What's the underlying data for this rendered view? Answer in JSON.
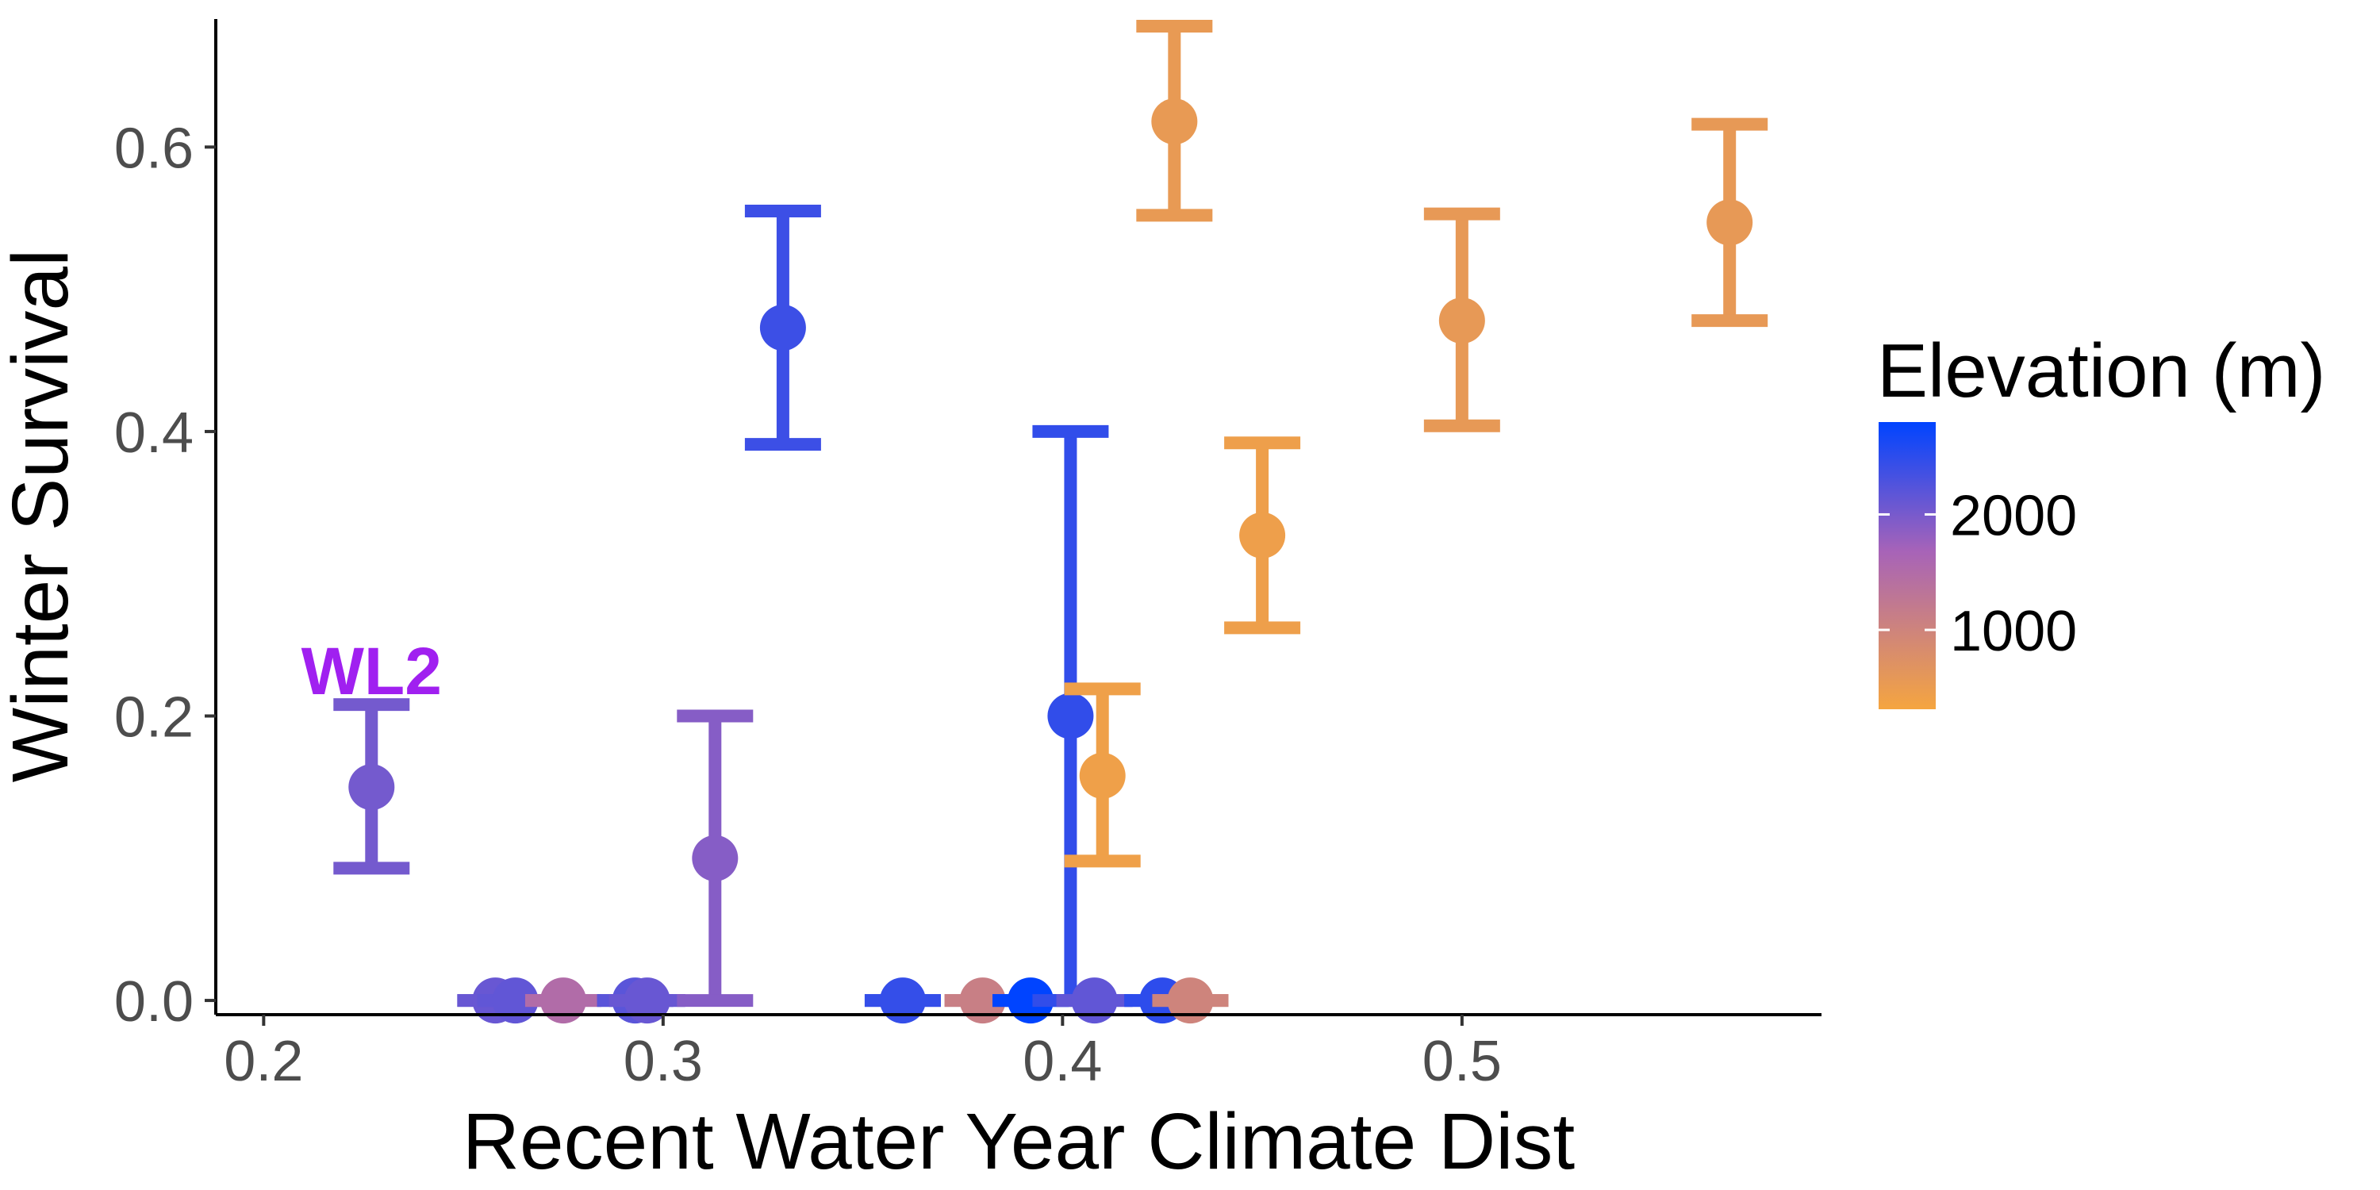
{
  "chart_data": {
    "type": "scatter",
    "xlabel": "Recent Water Year Climate Dist",
    "ylabel": "Winter Survival",
    "xlim": [
      0.19,
      0.59
    ],
    "ylim": [
      -0.01,
      0.69
    ],
    "x_ticks": [
      0.2,
      0.3,
      0.4,
      0.5
    ],
    "x_tick_labels": [
      "0.2",
      "0.3",
      "0.4",
      "0.5"
    ],
    "y_ticks": [
      0.0,
      0.2,
      0.4,
      0.6
    ],
    "y_tick_labels": [
      "0.0",
      "0.2",
      "0.4",
      "0.6"
    ],
    "grid": false,
    "legend": {
      "title": "Elevation (m)",
      "placement": "right",
      "type": "colorbar",
      "range": [
        313,
        2800
      ],
      "ticks": [
        1000,
        2000
      ],
      "tick_labels": [
        "1000",
        "2000"
      ],
      "colors": {
        "low": "#F5A540",
        "mid": "#A763B8",
        "high": "#0044FF"
      }
    },
    "annotations": [
      {
        "text": "WL2",
        "x": 0.227,
        "y": 0.232,
        "color": "#A020F0"
      }
    ],
    "points": [
      {
        "x": 0.227,
        "y": 0.15,
        "ymin": 0.093,
        "ymax": 0.208,
        "elevation": 2020
      },
      {
        "x": 0.258,
        "y": 0.0,
        "ymin": 0.0,
        "ymax": 0.0,
        "elevation": 2100
      },
      {
        "x": 0.263,
        "y": 0.0,
        "ymin": 0.0,
        "ymax": 0.0,
        "elevation": 2150
      },
      {
        "x": 0.275,
        "y": 0.0,
        "ymin": 0.0,
        "ymax": 0.0,
        "elevation": 1500
      },
      {
        "x": 0.293,
        "y": 0.0,
        "ymin": 0.0,
        "ymax": 0.0,
        "elevation": 2200
      },
      {
        "x": 0.296,
        "y": 0.0,
        "ymin": 0.0,
        "ymax": 0.0,
        "elevation": 2100
      },
      {
        "x": 0.313,
        "y": 0.1,
        "ymin": 0.0,
        "ymax": 0.2,
        "elevation": 1900
      },
      {
        "x": 0.33,
        "y": 0.473,
        "ymin": 0.391,
        "ymax": 0.555,
        "elevation": 2400
      },
      {
        "x": 0.36,
        "y": 0.0,
        "ymin": 0.0,
        "ymax": 0.0,
        "elevation": 2450
      },
      {
        "x": 0.38,
        "y": 0.0,
        "ymin": 0.0,
        "ymax": 0.0,
        "elevation": 1100
      },
      {
        "x": 0.392,
        "y": 0.0,
        "ymin": 0.0,
        "ymax": 0.0,
        "elevation": 2800
      },
      {
        "x": 0.402,
        "y": 0.2,
        "ymin": 0.0,
        "ymax": 0.4,
        "elevation": 2470
      },
      {
        "x": 0.408,
        "y": 0.0,
        "ymin": 0.0,
        "ymax": 0.0,
        "elevation": 2150
      },
      {
        "x": 0.41,
        "y": 0.158,
        "ymin": 0.098,
        "ymax": 0.219,
        "elevation": 420
      },
      {
        "x": 0.425,
        "y": 0.0,
        "ymin": 0.0,
        "ymax": 0.0,
        "elevation": 2500
      },
      {
        "x": 0.428,
        "y": 0.618,
        "ymin": 0.552,
        "ymax": 0.685,
        "elevation": 540
      },
      {
        "x": 0.432,
        "y": 0.0,
        "ymin": 0.0,
        "ymax": 0.0,
        "elevation": 1000
      },
      {
        "x": 0.45,
        "y": 0.327,
        "ymin": 0.262,
        "ymax": 0.392,
        "elevation": 440
      },
      {
        "x": 0.5,
        "y": 0.478,
        "ymin": 0.404,
        "ymax": 0.553,
        "elevation": 560
      },
      {
        "x": 0.567,
        "y": 0.547,
        "ymin": 0.478,
        "ymax": 0.616,
        "elevation": 560
      }
    ]
  }
}
